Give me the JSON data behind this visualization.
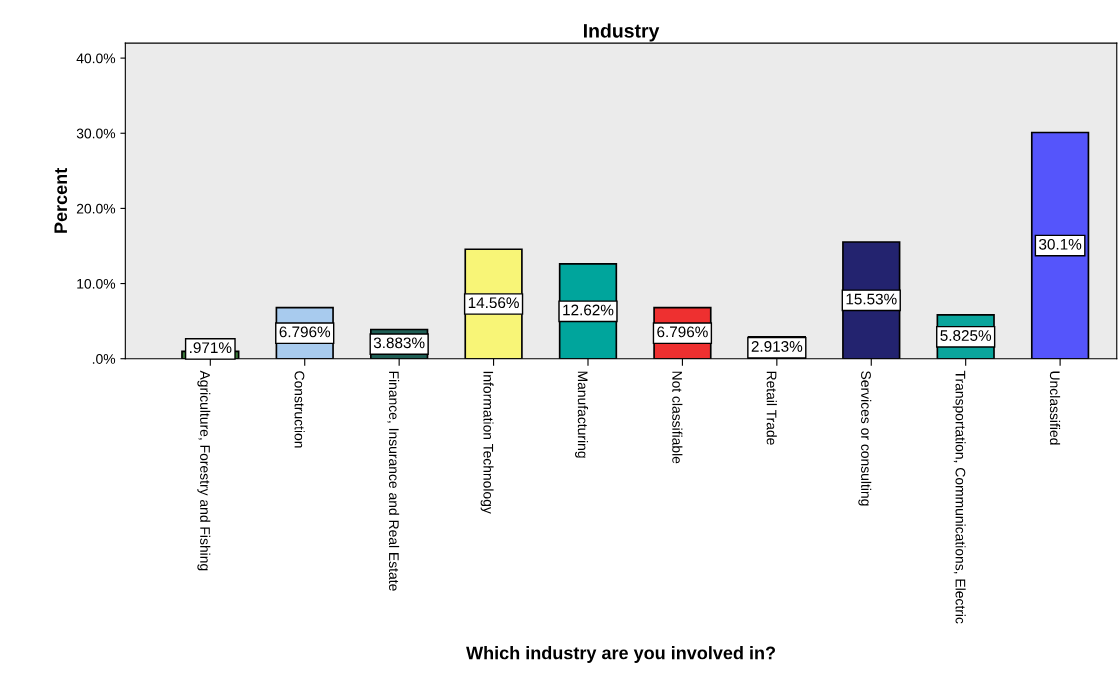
{
  "chart_data": {
    "type": "bar",
    "title": "Industry",
    "xlabel": "Which industry are you involved in?",
    "ylabel": "Percent",
    "categories": [
      "Agriculture, Forestry and Fishing",
      "Construction",
      "Finance, Insurance and Real Estate",
      "Information Technology",
      "Manufacturing",
      "Not classifiable",
      "Retail Trade",
      "Services or consulting",
      "Transportation, Communications, Electric",
      "Unclassified"
    ],
    "values": [
      0.971,
      6.796,
      3.883,
      14.56,
      12.62,
      6.796,
      2.913,
      15.53,
      5.825,
      30.1
    ],
    "value_labels": [
      ".971%",
      "6.796%",
      "3.883%",
      "14.56%",
      "12.62%",
      "6.796%",
      "2.913%",
      "15.53%",
      "5.825%",
      "30.1%"
    ],
    "colors": [
      "#3c7a3c",
      "#a8cbee",
      "#1f5f55",
      "#f8f577",
      "#00a59c",
      "#ee3030",
      "#d8d8d8",
      "#23236f",
      "#0aa59c",
      "#5555fb"
    ],
    "ylim": [
      0,
      42
    ],
    "yticks": [
      {
        "value": 0,
        "label": ".0%"
      },
      {
        "value": 10,
        "label": "10.0%"
      },
      {
        "value": 20,
        "label": "20.0%"
      },
      {
        "value": 30,
        "label": "30.0%"
      },
      {
        "value": 40,
        "label": "40.0%"
      }
    ],
    "grid": false,
    "legend": false
  }
}
